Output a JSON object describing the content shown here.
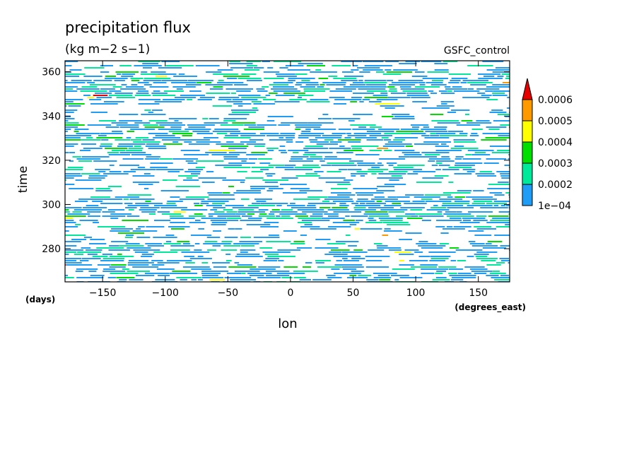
{
  "chart_data": {
    "type": "heatmap",
    "title": "precipitation flux",
    "units": "(kg m−2 s−1)",
    "dataset": "GSFC_control",
    "xlabel": "lon",
    "x_units": "(degrees_east)",
    "ylabel": "time",
    "y_units": "(days)",
    "xlim": [
      -180,
      175
    ],
    "ylim": [
      265,
      365
    ],
    "x_ticks": [
      -150,
      -100,
      -50,
      0,
      50,
      100,
      150
    ],
    "x_tick_labels": [
      "−150",
      "−100",
      "−50",
      "0",
      "50",
      "100",
      "150"
    ],
    "y_ticks": [
      280,
      300,
      320,
      340,
      360
    ],
    "y_tick_labels": [
      "280",
      "300",
      "320",
      "340",
      "360"
    ],
    "colorbar": {
      "levels": [
        0.0001,
        0.0002,
        0.0003,
        0.0004,
        0.0005,
        0.0006
      ],
      "level_labels": [
        "1e−04",
        "0.0002",
        "0.0003",
        "0.0004",
        "0.0005",
        "0.0006"
      ],
      "colors": [
        "#1e9cf6",
        "#00e89a",
        "#00dd00",
        "#ffff00",
        "#ff9900",
        "#e60000"
      ],
      "extend": "max"
    }
  }
}
